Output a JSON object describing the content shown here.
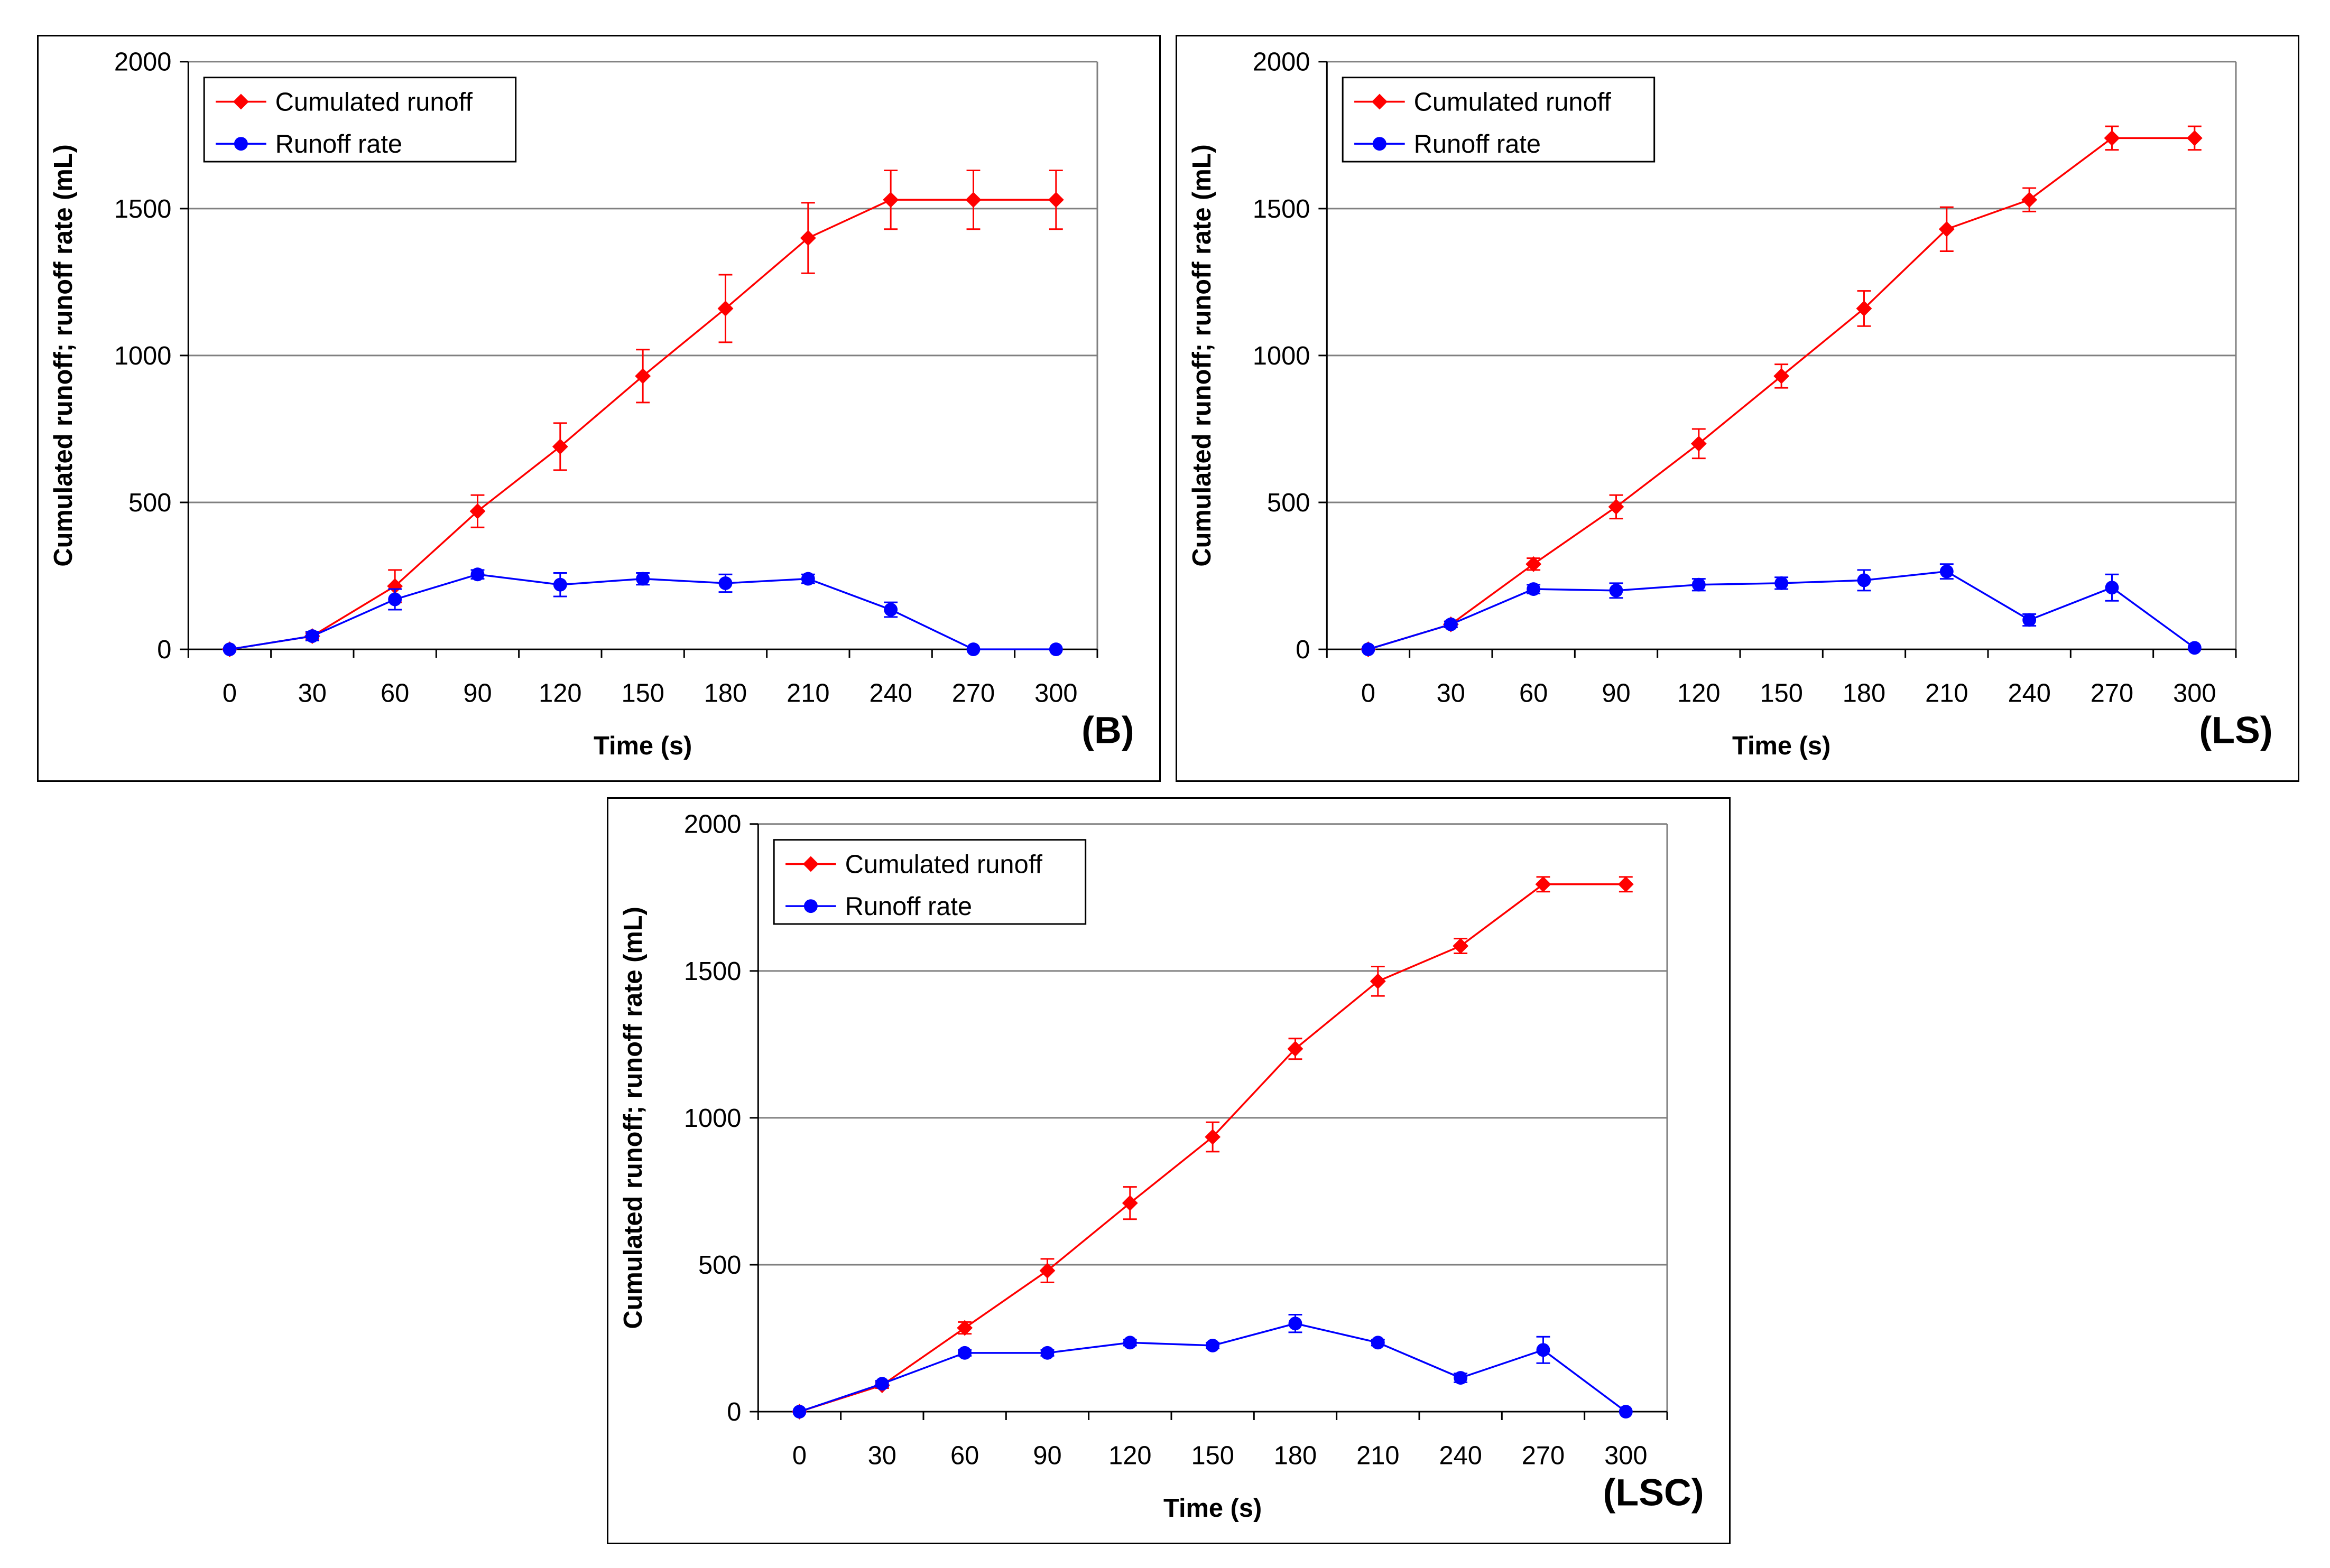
{
  "colors": {
    "cumulated": "#ff0000",
    "rate": "#0000ff",
    "grid": "#808080",
    "axis": "#000000"
  },
  "chart_data": [
    {
      "type": "line",
      "panel_label": "(B)",
      "xlabel": "Time (s)",
      "ylabel": "Cumulated runoff; runoff rate (mL)",
      "ylim": [
        0,
        2000
      ],
      "yticks": [
        0,
        500,
        1000,
        1500,
        2000
      ],
      "x": [
        0,
        30,
        60,
        90,
        120,
        150,
        180,
        210,
        240,
        270,
        300
      ],
      "grid": "horizontal major",
      "legend_position": "top-left",
      "series": [
        {
          "name": "Cumulated runoff",
          "marker": "diamond",
          "color": "#ff0000",
          "values": [
            0,
            45,
            215,
            470,
            690,
            930,
            1160,
            1400,
            1530,
            1530,
            1530
          ],
          "errors": [
            0,
            10,
            55,
            55,
            80,
            90,
            115,
            120,
            100,
            100,
            100
          ]
        },
        {
          "name": "Runoff rate",
          "marker": "circle",
          "color": "#0000ff",
          "values": [
            0,
            45,
            170,
            255,
            220,
            240,
            225,
            240,
            135,
            0,
            0
          ],
          "errors": [
            0,
            15,
            35,
            15,
            40,
            20,
            30,
            15,
            25,
            0,
            0
          ]
        }
      ]
    },
    {
      "type": "line",
      "panel_label": "(LS)",
      "xlabel": "Time (s)",
      "ylabel": "Cumulated runoff; runoff rate (mL)",
      "ylim": [
        0,
        2000
      ],
      "yticks": [
        0,
        500,
        1000,
        1500,
        2000
      ],
      "x": [
        0,
        30,
        60,
        90,
        120,
        150,
        180,
        210,
        240,
        270,
        300
      ],
      "grid": "horizontal major",
      "legend_position": "top-left",
      "series": [
        {
          "name": "Cumulated runoff",
          "marker": "diamond",
          "color": "#ff0000",
          "values": [
            0,
            85,
            290,
            485,
            700,
            930,
            1160,
            1430,
            1530,
            1740,
            1740
          ],
          "errors": [
            0,
            10,
            20,
            40,
            50,
            40,
            60,
            75,
            40,
            40,
            40
          ]
        },
        {
          "name": "Runoff rate",
          "marker": "circle",
          "color": "#0000ff",
          "values": [
            0,
            85,
            205,
            200,
            220,
            225,
            235,
            265,
            100,
            210,
            5
          ],
          "errors": [
            0,
            10,
            15,
            25,
            20,
            20,
            35,
            25,
            20,
            45,
            0
          ]
        }
      ]
    },
    {
      "type": "line",
      "panel_label": "(LSC)",
      "xlabel": "Time (s)",
      "ylabel": "Cumulated runoff; runoff rate (mL)",
      "ylim": [
        0,
        2000
      ],
      "yticks": [
        0,
        500,
        1000,
        1500,
        2000
      ],
      "x": [
        0,
        30,
        60,
        90,
        120,
        150,
        180,
        210,
        240,
        270,
        300
      ],
      "grid": "horizontal major",
      "legend_position": "top-left",
      "series": [
        {
          "name": "Cumulated runoff",
          "marker": "diamond",
          "color": "#ff0000",
          "values": [
            0,
            90,
            285,
            480,
            710,
            935,
            1235,
            1465,
            1585,
            1795,
            1795
          ],
          "errors": [
            0,
            10,
            20,
            40,
            55,
            50,
            35,
            50,
            25,
            25,
            25
          ]
        },
        {
          "name": "Runoff rate",
          "marker": "circle",
          "color": "#0000ff",
          "values": [
            0,
            95,
            200,
            200,
            235,
            225,
            300,
            235,
            115,
            210,
            0
          ],
          "errors": [
            0,
            10,
            10,
            10,
            10,
            10,
            30,
            10,
            15,
            45,
            0
          ]
        }
      ]
    }
  ]
}
